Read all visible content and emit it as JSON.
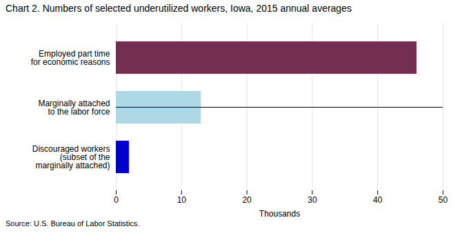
{
  "chart_data": {
    "type": "bar",
    "orientation": "horizontal",
    "title": "Chart 2. Numbers of selected underutilized workers, Iowa, 2015 annual averages",
    "categories": [
      "Discouraged workers\n(subset of the\nmarginally attached)",
      "Marginally attached\nto the labor force",
      "Employed part time\nfor economic reasons"
    ],
    "values": [
      2.0,
      13.0,
      46.0
    ],
    "colors": [
      "#0000CC",
      "#ADD8E6",
      "#722F4F"
    ],
    "xlabel": "Thousands",
    "xlim": [
      0,
      50
    ],
    "xticks": [
      0,
      10,
      20,
      30,
      40,
      50
    ],
    "grid": true,
    "source": "Source: U.S. Bureau of Labor Statistics."
  }
}
